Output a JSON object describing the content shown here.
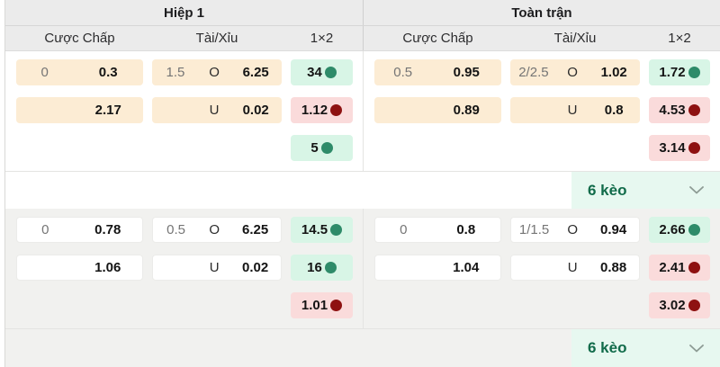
{
  "header": {
    "sections": [
      {
        "title": "Hiệp 1"
      },
      {
        "title": "Toàn trận"
      }
    ],
    "columns": [
      "Cược Chấp",
      "Tài/Xỉu",
      "1×2"
    ]
  },
  "blocks": [
    {
      "style": "primary",
      "halves": [
        {
          "handicap": [
            {
              "line": "0",
              "odds": "0.3"
            },
            {
              "line": "",
              "odds": "2.17"
            }
          ],
          "over_under": [
            {
              "line": "1.5",
              "label": "O",
              "odds": "6.25"
            },
            {
              "line": "",
              "label": "U",
              "odds": "0.02"
            }
          ],
          "one_x_two": [
            {
              "odds": "34",
              "trend": "up"
            },
            {
              "odds": "1.12",
              "trend": "down"
            },
            {
              "odds": "5",
              "trend": "up"
            }
          ]
        },
        {
          "handicap": [
            {
              "line": "0.5",
              "odds": "0.95"
            },
            {
              "line": "",
              "odds": "0.89"
            }
          ],
          "over_under": [
            {
              "line": "2/2.5",
              "label": "O",
              "odds": "1.02"
            },
            {
              "line": "",
              "label": "U",
              "odds": "0.8"
            }
          ],
          "one_x_two": [
            {
              "odds": "1.72",
              "trend": "up"
            },
            {
              "odds": "4.53",
              "trend": "down"
            },
            {
              "odds": "3.14",
              "trend": "down"
            }
          ]
        }
      ],
      "more": {
        "label": "6 kèo"
      }
    },
    {
      "style": "secondary",
      "halves": [
        {
          "handicap": [
            {
              "line": "0",
              "odds": "0.78"
            },
            {
              "line": "",
              "odds": "1.06"
            }
          ],
          "over_under": [
            {
              "line": "0.5",
              "label": "O",
              "odds": "6.25"
            },
            {
              "line": "",
              "label": "U",
              "odds": "0.02"
            }
          ],
          "one_x_two": [
            {
              "odds": "14.5",
              "trend": "up"
            },
            {
              "odds": "16",
              "trend": "up"
            },
            {
              "odds": "1.01",
              "trend": "down"
            }
          ]
        },
        {
          "handicap": [
            {
              "line": "0",
              "odds": "0.8"
            },
            {
              "line": "",
              "odds": "1.04"
            }
          ],
          "over_under": [
            {
              "line": "1/1.5",
              "label": "O",
              "odds": "0.94"
            },
            {
              "line": "",
              "label": "U",
              "odds": "0.88"
            }
          ],
          "one_x_two": [
            {
              "odds": "2.66",
              "trend": "up"
            },
            {
              "odds": "2.41",
              "trend": "down"
            },
            {
              "odds": "3.02",
              "trend": "down"
            }
          ]
        }
      ],
      "more": {
        "label": "6 kèo"
      }
    }
  ],
  "colors": {
    "header-bg": "#ebebeb",
    "orange-cell": "#fcecd4",
    "mint-cell": "#d8f5e6",
    "pink-cell": "#fadbdb",
    "up-dot": "#2e8b69",
    "down-dot": "#8e1111",
    "keo-bg": "#e7f8f0",
    "keo-text": "#116b4a",
    "block2-bg": "#f1f1ef",
    "line-text": "#757575",
    "odds-text": "#141414"
  }
}
